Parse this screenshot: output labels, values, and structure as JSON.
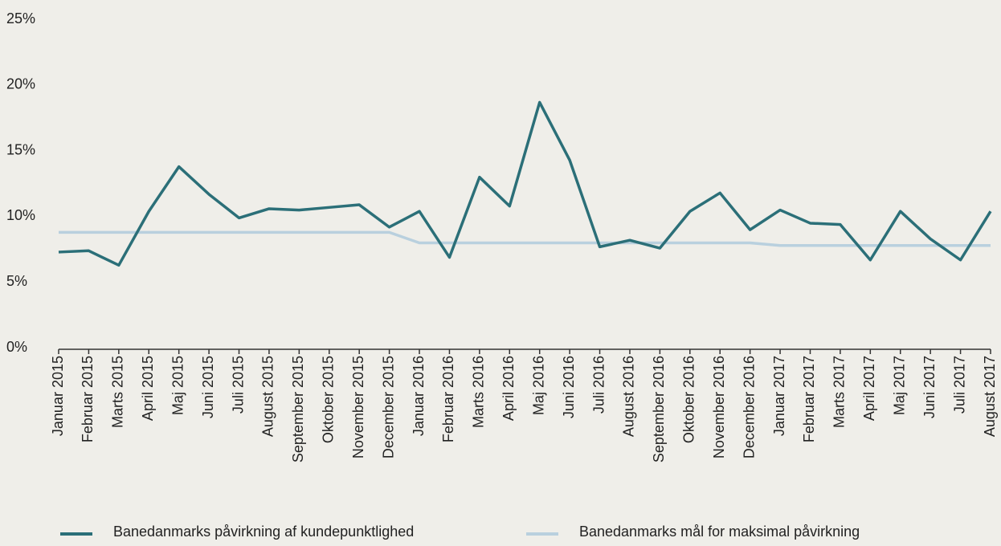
{
  "chart_data": {
    "type": "line",
    "categories": [
      "Januar 2015",
      "Februar 2015",
      "Marts 2015",
      "April 2015",
      "Maj 2015",
      "Juni 2015",
      "Juli 2015",
      "August 2015",
      "September 2015",
      "Oktober 2015",
      "November 2015",
      "December 2015",
      "Januar 2016",
      "Februar 2016",
      "Marts 2016",
      "April 2016",
      "Maj 2016",
      "Juni 2016",
      "Juli 2016",
      "August 2016",
      "September 2016",
      "Oktober 2016",
      "November 2016",
      "December 2016",
      "Januar 2017",
      "Februar 2017",
      "Marts 2017",
      "April 2017",
      "Maj 2017",
      "Juni 2017",
      "Juli 2017",
      "August 2017"
    ],
    "series": [
      {
        "name": "Banedanmarks påvirkning af kundepunktlighed",
        "color": "#2b6f78",
        "values": [
          7.4,
          7.5,
          6.4,
          10.5,
          13.9,
          11.8,
          10.0,
          10.7,
          10.6,
          10.8,
          11.0,
          9.3,
          10.5,
          7.0,
          13.1,
          10.9,
          18.8,
          14.4,
          7.8,
          8.3,
          7.7,
          10.5,
          11.9,
          9.1,
          10.6,
          9.6,
          9.5,
          6.8,
          10.5,
          8.4,
          6.8,
          10.5
        ]
      },
      {
        "name": "Banedanmarks mål for maksimal påvirkning",
        "color": "#b9d0de",
        "values": [
          8.9,
          8.9,
          8.9,
          8.9,
          8.9,
          8.9,
          8.9,
          8.9,
          8.9,
          8.9,
          8.9,
          8.9,
          8.1,
          8.1,
          8.1,
          8.1,
          8.1,
          8.1,
          8.1,
          8.1,
          8.1,
          8.1,
          8.1,
          8.1,
          7.9,
          7.9,
          7.9,
          7.9,
          7.9,
          7.9,
          7.9,
          7.9
        ]
      }
    ],
    "ylim": [
      0,
      25
    ],
    "yticks": [
      {
        "value": 0,
        "label": "0%"
      },
      {
        "value": 5,
        "label": "5%"
      },
      {
        "value": 10,
        "label": "10%"
      },
      {
        "value": 15,
        "label": "15%"
      },
      {
        "value": 20,
        "label": "20%"
      },
      {
        "value": 25,
        "label": "25%"
      }
    ],
    "legend": "bottom"
  }
}
